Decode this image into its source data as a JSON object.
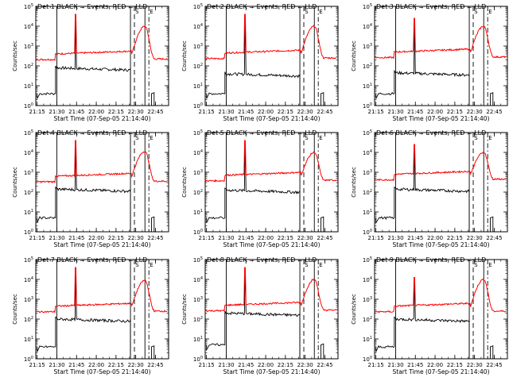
{
  "chart_data": {
    "type": "line",
    "layout": "3x3 grid",
    "xlabel": "Start Time (07-Sep-05 21:14:40)",
    "ylabel": "Counts/sec",
    "xtick_labels": [
      "21:15",
      "21:30",
      "21:45",
      "22:00",
      "22:15",
      "22:30",
      "22:45"
    ],
    "ytick_exponents": [
      "0",
      "1",
      "2",
      "3",
      "4",
      "5"
    ],
    "ytick_base": "10",
    "x_range_minutes_after_2114": [
      0,
      101
    ],
    "ylim_log10": [
      0,
      5
    ],
    "y_scale": "log",
    "series_colors": {
      "events": "#000000",
      "lld": "#ff0000"
    },
    "flag_letters": [
      "S",
      "E"
    ],
    "panels": [
      {
        "title": "Det 1 BLACK = Events, RED = LLD",
        "lld_base": 2.3,
        "lld_peak": 4.0,
        "ev_base": 1.9,
        "ev_pre": 0.6,
        "spike_top": 4.6
      },
      {
        "title": "Det 2 BLACK = Events, RED = LLD",
        "lld_base": 2.35,
        "lld_peak": 4.0,
        "ev_base": 1.6,
        "ev_pre": 0.6,
        "spike_top": 4.6
      },
      {
        "title": "Det 3 BLACK = Events, RED = LLD",
        "lld_base": 2.4,
        "lld_peak": 4.0,
        "ev_base": 1.65,
        "ev_pre": 0.6,
        "spike_top": 4.4
      },
      {
        "title": "Det 4 BLACK = Events, RED = LLD",
        "lld_base": 2.5,
        "lld_peak": 4.05,
        "ev_base": 2.15,
        "ev_pre": 0.7,
        "spike_top": 4.6
      },
      {
        "title": "Det 5 BLACK = Events, RED = LLD",
        "lld_base": 2.55,
        "lld_peak": 4.0,
        "ev_base": 2.1,
        "ev_pre": 0.7,
        "spike_top": 4.6
      },
      {
        "title": "Det 6 BLACK = Events, RED = LLD",
        "lld_base": 2.6,
        "lld_peak": 4.0,
        "ev_base": 2.15,
        "ev_pre": 0.7,
        "spike_top": 4.4
      },
      {
        "title": "Det 7 BLACK = Events, RED = LLD",
        "lld_base": 2.35,
        "lld_peak": 3.95,
        "ev_base": 2.0,
        "ev_pre": 0.6,
        "spike_top": 4.6
      },
      {
        "title": "Det 8 BLACK = Events, RED = LLD",
        "lld_base": 2.4,
        "lld_peak": 4.0,
        "ev_base": 2.3,
        "ev_pre": 0.7,
        "spike_top": 4.6
      },
      {
        "title": "Det 9 BLACK = Events, RED = LLD",
        "lld_base": 2.35,
        "lld_peak": 4.0,
        "ev_base": 2.0,
        "ev_pre": 0.6,
        "spike_top": 4.1
      }
    ]
  }
}
